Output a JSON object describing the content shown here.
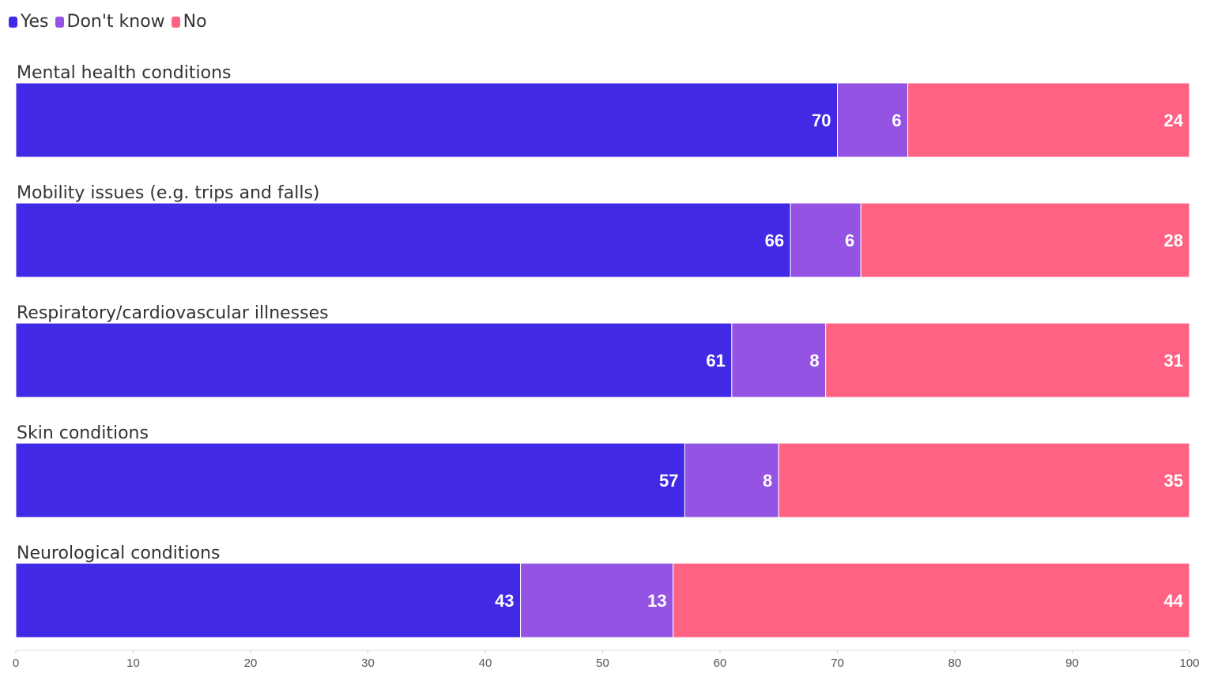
{
  "chart_data": {
    "type": "bar",
    "orientation": "horizontal",
    "stacked": true,
    "title": "",
    "xlabel": "",
    "ylabel": "",
    "xlim": [
      0,
      100
    ],
    "x_ticks": [
      "0",
      "10",
      "20",
      "30",
      "40",
      "50",
      "60",
      "70",
      "80",
      "90",
      "100"
    ],
    "grid": false,
    "legend_position": "top-left",
    "categories": [
      "Mental health conditions",
      "Mobility issues (e.g. trips and falls)",
      "Respiratory/cardiovascular illnesses",
      "Skin conditions",
      "Neurological conditions"
    ],
    "series": [
      {
        "name": "Yes",
        "color": "#4229e6",
        "values": [
          70,
          66,
          61,
          57,
          43
        ]
      },
      {
        "name": "Don't know",
        "color": "#9453e3",
        "values": [
          6,
          6,
          8,
          8,
          13
        ]
      },
      {
        "name": "No",
        "color": "#ff6282",
        "values": [
          24,
          28,
          31,
          35,
          44
        ]
      }
    ]
  }
}
